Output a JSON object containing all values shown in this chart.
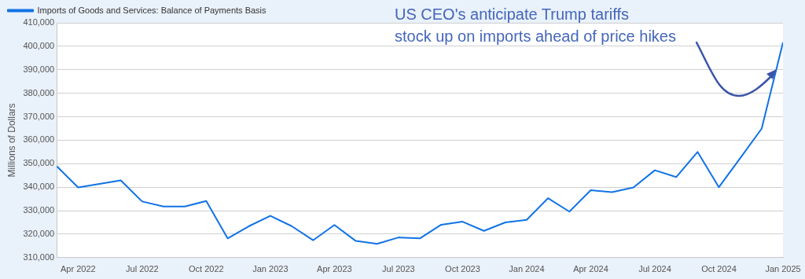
{
  "chart_data": {
    "type": "line",
    "ylabel": "Millions of Dollars",
    "annotations": [
      "US CEO's anticipate Trump tariffs\nstock up on imports ahead of price hikes"
    ],
    "x": [
      "2022-03",
      "2022-04",
      "2022-05",
      "2022-06",
      "2022-07",
      "2022-08",
      "2022-09",
      "2022-10",
      "2022-11",
      "2022-12",
      "2023-01",
      "2023-02",
      "2023-03",
      "2023-04",
      "2023-05",
      "2023-06",
      "2023-07",
      "2023-08",
      "2023-09",
      "2023-10",
      "2023-11",
      "2023-12",
      "2024-01",
      "2024-02",
      "2024-03",
      "2024-04",
      "2024-05",
      "2024-06",
      "2024-07",
      "2024-08",
      "2024-09",
      "2024-10",
      "2024-11",
      "2024-12",
      "2025-01"
    ],
    "series": [
      {
        "name": "Imports of Goods and Services: Balance of Payments Basis",
        "color": "#1073e6",
        "values": [
          348900,
          339900,
          341400,
          342900,
          333900,
          331800,
          331800,
          334100,
          318200,
          323400,
          327800,
          323400,
          317400,
          323900,
          317100,
          315900,
          318600,
          318200,
          324000,
          325300,
          321400,
          325000,
          326100,
          335300,
          329600,
          338700,
          337900,
          339900,
          347200,
          344300,
          355000,
          340000,
          352400,
          364900,
          401600
        ]
      }
    ],
    "xlim": [
      "2022-03",
      "2025-01"
    ],
    "xticks": [
      {
        "value": "2022-04",
        "label": "Apr 2022"
      },
      {
        "value": "2022-07",
        "label": "Jul 2022"
      },
      {
        "value": "2022-10",
        "label": "Oct 2022"
      },
      {
        "value": "2023-01",
        "label": "Jan 2023"
      },
      {
        "value": "2023-04",
        "label": "Apr 2023"
      },
      {
        "value": "2023-07",
        "label": "Jul 2023"
      },
      {
        "value": "2023-10",
        "label": "Oct 2023"
      },
      {
        "value": "2024-01",
        "label": "Jan 2024"
      },
      {
        "value": "2024-04",
        "label": "Apr 2024"
      },
      {
        "value": "2024-07",
        "label": "Jul 2024"
      },
      {
        "value": "2024-10",
        "label": "Oct 2024"
      },
      {
        "value": "2025-01",
        "label": "Jan 2025"
      }
    ],
    "ylim": [
      310000,
      410000
    ],
    "yticks": [
      {
        "value": 310000,
        "label": "310,000"
      },
      {
        "value": 320000,
        "label": "320,000"
      },
      {
        "value": 330000,
        "label": "330,000"
      },
      {
        "value": 340000,
        "label": "340,000"
      },
      {
        "value": 350000,
        "label": "350,000"
      },
      {
        "value": 360000,
        "label": "360,000"
      },
      {
        "value": 370000,
        "label": "370,000"
      },
      {
        "value": 380000,
        "label": "380,000"
      },
      {
        "value": 390000,
        "label": "390,000"
      },
      {
        "value": 400000,
        "label": "400,000"
      },
      {
        "value": 410000,
        "label": "410,000"
      }
    ],
    "grid": "y",
    "legend": "top left",
    "marker": "none",
    "line_style": "solid"
  }
}
